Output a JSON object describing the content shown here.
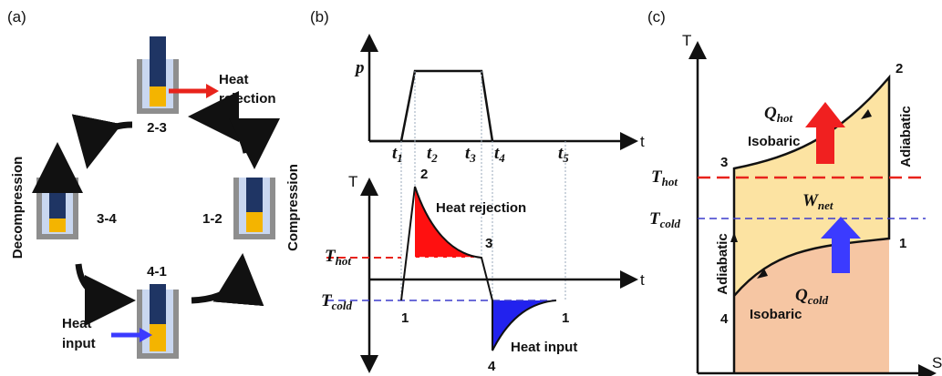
{
  "panel_a": {
    "label": "(a)",
    "heat_rejection": [
      "Heat",
      "rejection"
    ],
    "heat_input": [
      "Heat",
      "input"
    ],
    "states": {
      "s23": "2-3",
      "s34": "3-4",
      "s12": "1-2",
      "s41": "4-1"
    },
    "decompression": "Decompression",
    "compression": "Compression"
  },
  "panel_b": {
    "label": "(b)",
    "p_axis": "p",
    "t_axis_top": "t",
    "t_ticks": [
      {
        "symbol": "t",
        "subscript": "1"
      },
      {
        "symbol": "t",
        "subscript": "2"
      },
      {
        "symbol": "t",
        "subscript": "3"
      },
      {
        "symbol": "t",
        "subscript": "4"
      },
      {
        "symbol": "t",
        "subscript": "5"
      }
    ],
    "T_axis": "T",
    "t_axis_bottom": "t",
    "point_2": "2",
    "point_3": "3",
    "point_1a": "1",
    "point_4": "4",
    "point_1b": "1",
    "heat_rejection": "Heat rejection",
    "heat_input": "Heat input",
    "t_hot": {
      "symbol": "T",
      "subscript": "hot"
    },
    "t_cold": {
      "symbol": "T",
      "subscript": "cold"
    }
  },
  "panel_c": {
    "label": "(c)",
    "T_axis": "T",
    "S_axis": "S",
    "point_1": "1",
    "point_2": "2",
    "point_3": "3",
    "point_4": "4",
    "isobaric_top": "Isobaric",
    "isobaric_bottom": "Isobaric",
    "adiabatic_right": "Adiabatic",
    "adiabatic_left": "Adiabatic",
    "q_hot": {
      "symbol": "Q",
      "subscript": "hot"
    },
    "q_cold": {
      "symbol": "Q",
      "subscript": "cold"
    },
    "w_net": {
      "symbol": "W",
      "subscript": "net"
    },
    "t_hot": {
      "symbol": "T",
      "subscript": "hot"
    },
    "t_cold": {
      "symbol": "T",
      "subscript": "cold"
    }
  }
}
